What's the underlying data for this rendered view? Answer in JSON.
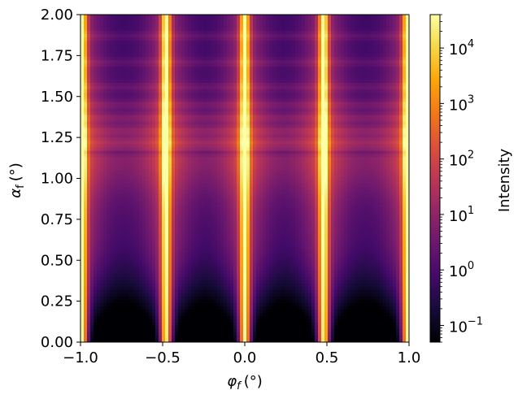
{
  "chart_data": {
    "type": "heatmap",
    "title": "",
    "xlabel": "φf (°)",
    "xlabel_parts": {
      "symbol": "φ",
      "sub": "f",
      "unit": "(°)"
    },
    "ylabel": "αf (°)",
    "ylabel_parts": {
      "symbol": "α",
      "sub": "f",
      "unit": "(°)"
    },
    "xlim": [
      -1.0,
      1.0
    ],
    "ylim": [
      0.0,
      2.0
    ],
    "xticks": [
      "−1.0",
      "−0.5",
      "0.0",
      "0.5",
      "1.0"
    ],
    "xtick_values": [
      -1.0,
      -0.5,
      0.0,
      0.5,
      1.0
    ],
    "yticks": [
      "0.00",
      "0.25",
      "0.50",
      "0.75",
      "1.00",
      "1.25",
      "1.50",
      "1.75",
      "2.00"
    ],
    "ytick_values": [
      0.0,
      0.25,
      0.5,
      0.75,
      1.0,
      1.25,
      1.5,
      1.75,
      2.0
    ],
    "colormap": "inferno",
    "colorbar": {
      "label": "Intensity",
      "scale": "log",
      "range": [
        0.05,
        40000
      ],
      "tick_exponents": [
        -1,
        0,
        1,
        2,
        3,
        4
      ],
      "tick_base": "10"
    },
    "features": {
      "rod_positions_phi": [
        -0.99,
        -0.48,
        0.0,
        0.48,
        0.99
      ],
      "peak_alpha": 1.15,
      "peak_intensity": 40000,
      "dark_line_alpha": 1.15,
      "fringe_alpha": [
        1.22,
        1.29,
        1.37,
        1.45,
        1.56,
        1.71,
        1.87
      ],
      "background_intensity": 0.05
    },
    "grid": false,
    "legend": "none"
  }
}
